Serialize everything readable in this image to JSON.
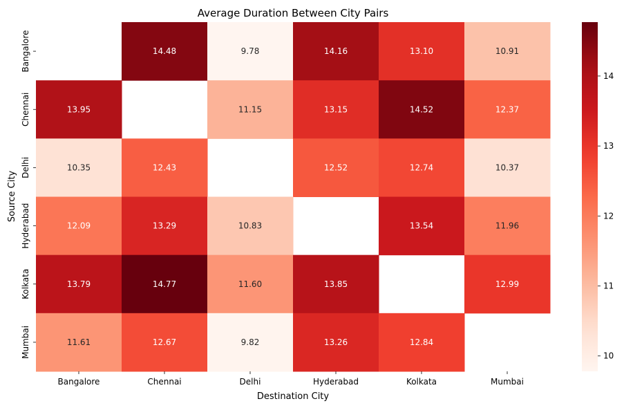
{
  "chart_data": {
    "type": "heatmap",
    "title": "Average Duration Between City Pairs",
    "xlabel": "Destination City",
    "ylabel": "Source City",
    "x_categories": [
      "Bangalore",
      "Chennai",
      "Delhi",
      "Hyderabad",
      "Kolkata",
      "Mumbai"
    ],
    "y_categories": [
      "Bangalore",
      "Chennai",
      "Delhi",
      "Hyderabad",
      "Kolkata",
      "Mumbai"
    ],
    "values": [
      [
        null,
        14.48,
        9.78,
        14.16,
        13.1,
        10.91
      ],
      [
        13.95,
        null,
        11.15,
        13.15,
        14.52,
        12.37
      ],
      [
        10.35,
        12.43,
        null,
        12.52,
        12.74,
        10.37
      ],
      [
        12.09,
        13.29,
        10.83,
        null,
        13.54,
        11.96
      ],
      [
        13.79,
        14.77,
        11.6,
        13.85,
        null,
        12.99
      ],
      [
        11.61,
        12.67,
        9.82,
        13.26,
        12.84,
        null
      ]
    ],
    "value_range": [
      9.78,
      14.77
    ],
    "colorscale": "Reds",
    "colorbar_ticks": [
      10,
      11,
      12,
      13,
      14
    ],
    "legend_placement": "right",
    "grid": false
  }
}
